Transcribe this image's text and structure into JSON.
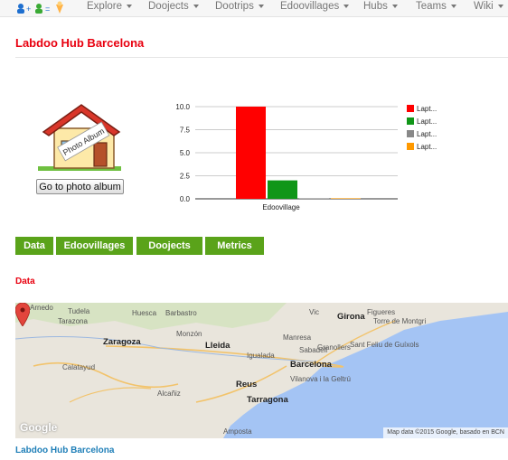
{
  "nav": {
    "items": [
      {
        "label": "Explore"
      },
      {
        "label": "Doojects"
      },
      {
        "label": "Dootrips"
      },
      {
        "label": "Edoovillages"
      },
      {
        "label": "Hubs"
      },
      {
        "label": "Teams"
      },
      {
        "label": "Wiki"
      }
    ]
  },
  "hub": {
    "title": "Labdoo Hub Barcelona",
    "album_image_text": "Photo Album",
    "album_button": "Go to photo album"
  },
  "chart_data": {
    "type": "bar",
    "categories": [
      "Edoovillage"
    ],
    "series": [
      {
        "name": "Lapt...",
        "values": [
          10
        ],
        "color": "#ff0000"
      },
      {
        "name": "Lapt...",
        "values": [
          2
        ],
        "color": "#109618"
      },
      {
        "name": "Lapt...",
        "values": [
          0
        ],
        "color": "#888888"
      },
      {
        "name": "Lapt...",
        "values": [
          0
        ],
        "color": "#ff9900"
      }
    ],
    "ylim": [
      0,
      10
    ],
    "yticks": [
      "10.0",
      "7.5",
      "5.0",
      "2.5",
      "0.0"
    ],
    "grid": true,
    "legend": "right"
  },
  "tabs": [
    {
      "label": "Data"
    },
    {
      "label": "Edoovillages"
    },
    {
      "label": "Doojects"
    },
    {
      "label": "Metrics"
    }
  ],
  "section": {
    "heading": "Data"
  },
  "map": {
    "labels": [
      "Arnedo",
      "Tudela",
      "Huesca",
      "Barbastro",
      "Vic",
      "Girona",
      "Figueres",
      "Tarazona",
      "Monzón",
      "Manresa",
      "Torre de Montgri",
      "Zaragoza",
      "Lleida",
      "Sabadell",
      "Granollers",
      "Sant Feliu de Guíxols",
      "Calatayud",
      "Igualada",
      "Barcelona",
      "Alcañiz",
      "Reus",
      "Vilanova i la Geltrú",
      "Tarragona",
      "Amposta"
    ],
    "credit": "Map data ©2015 Google, basado en BCN",
    "logo": "Google"
  },
  "footer": {
    "link": "Labdoo Hub Barcelona"
  }
}
